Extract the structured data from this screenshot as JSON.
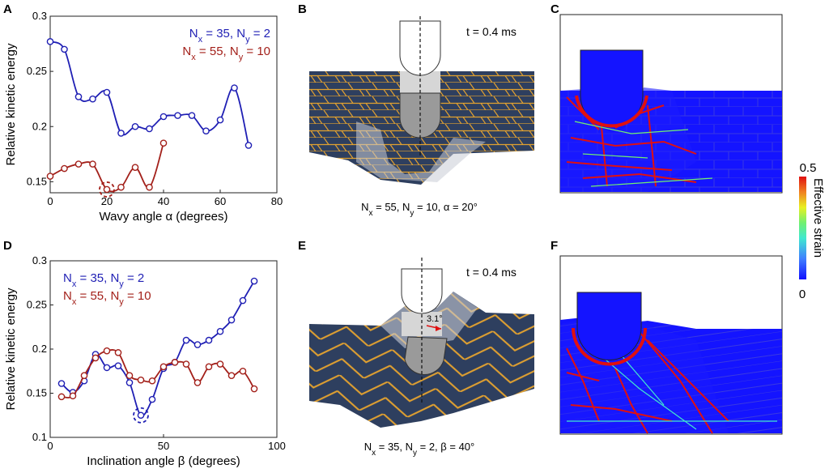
{
  "panels": {
    "A": "A",
    "B": "B",
    "C": "C",
    "D": "D",
    "E": "E",
    "F": "F"
  },
  "sim_labels": {
    "time_B": "t = 0.4 ms",
    "time_E": "t = 0.4 ms",
    "angle_E": "3.1°",
    "caption_B": "Nx = 55, Ny = 10, α = 20°",
    "caption_E": "Nx = 35, Ny = 2, β = 40°"
  },
  "colorbar": {
    "title": "Effective strain",
    "max_label": "0.5",
    "min_label": "0"
  },
  "colors": {
    "series_blue": "#1f1fb4",
    "series_red": "#a3201a",
    "dark_block": "#2e3f5f",
    "seam": "#e0a030",
    "strain_blue": "#1414ff",
    "strain_red": "#e01010"
  },
  "chart_data": [
    {
      "type": "line",
      "panel": "A",
      "xlabel": "Wavy angle α (degrees)",
      "ylabel": "Relative kinetic energy",
      "xlim": [
        0,
        80
      ],
      "ylim": [
        0.14,
        0.3
      ],
      "xticks": [
        0,
        20,
        40,
        60,
        80
      ],
      "yticks": [
        0.15,
        0.2,
        0.25,
        0.3
      ],
      "legend_position": "top-right",
      "series": [
        {
          "name": "Nx = 35, Ny = 2",
          "x": [
            0,
            5,
            10,
            15,
            20,
            25,
            30,
            35,
            40,
            45,
            50,
            55,
            60,
            65,
            70
          ],
          "y": [
            0.277,
            0.27,
            0.227,
            0.225,
            0.231,
            0.194,
            0.2,
            0.198,
            0.209,
            0.21,
            0.21,
            0.196,
            0.206,
            0.235,
            0.183
          ]
        },
        {
          "name": "Nx = 55, Ny = 10",
          "x": [
            0,
            5,
            10,
            15,
            20,
            25,
            30,
            35,
            40
          ],
          "y": [
            0.155,
            0.162,
            0.166,
            0.166,
            0.143,
            0.145,
            0.163,
            0.145,
            0.185
          ]
        }
      ],
      "highlight": {
        "series": "Nx = 55, Ny = 10",
        "x": 20,
        "y": 0.143
      }
    },
    {
      "type": "line",
      "panel": "D",
      "xlabel": "Inclination angle β (degrees)",
      "ylabel": "Relative kinetic energy",
      "xlim": [
        0,
        100
      ],
      "ylim": [
        0.1,
        0.3
      ],
      "xticks": [
        0,
        50,
        100
      ],
      "yticks": [
        0.1,
        0.15,
        0.2,
        0.25,
        0.3
      ],
      "legend_position": "top-left",
      "series": [
        {
          "name": "Nx = 35, Ny = 2",
          "x": [
            5,
            10,
            15,
            20,
            25,
            30,
            35,
            40,
            45,
            50,
            55,
            60,
            65,
            70,
            75,
            80,
            85,
            90
          ],
          "y": [
            0.161,
            0.151,
            0.164,
            0.194,
            0.179,
            0.181,
            0.162,
            0.125,
            0.143,
            0.178,
            0.185,
            0.21,
            0.205,
            0.21,
            0.22,
            0.233,
            0.255,
            0.277
          ]
        },
        {
          "name": "Nx = 55, Ny = 10",
          "x": [
            5,
            10,
            15,
            20,
            25,
            30,
            35,
            40,
            45,
            50,
            55,
            60,
            65,
            70,
            75,
            80,
            85,
            90
          ],
          "y": [
            0.146,
            0.147,
            0.17,
            0.19,
            0.198,
            0.196,
            0.17,
            0.165,
            0.164,
            0.18,
            0.185,
            0.183,
            0.162,
            0.18,
            0.183,
            0.17,
            0.175,
            0.155
          ]
        }
      ],
      "highlight": {
        "series": "Nx = 35, Ny = 2",
        "x": 40,
        "y": 0.125
      }
    }
  ]
}
